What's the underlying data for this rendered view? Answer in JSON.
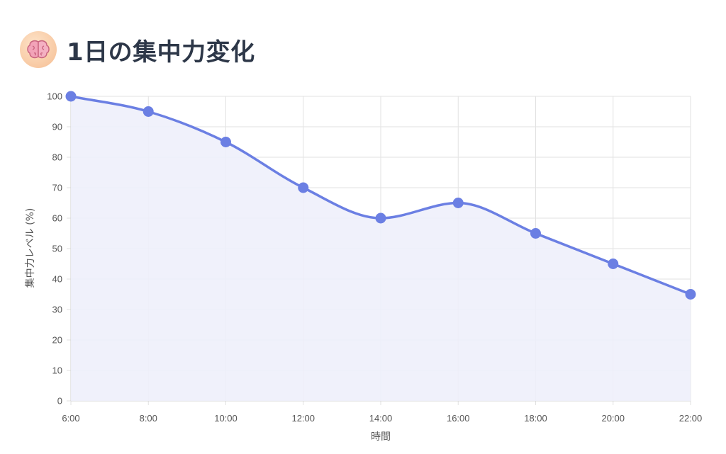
{
  "header": {
    "title": "1日の集中力変化",
    "icon": "brain-icon"
  },
  "colors": {
    "line": "#6b7fe3",
    "fill": "#eef0fb",
    "grid": "#e2e2e2",
    "title": "#2d3748"
  },
  "chart_data": {
    "type": "line",
    "title": "1日の集中力変化",
    "xlabel": "時間",
    "ylabel": "集中力レベル (%)",
    "categories": [
      "6:00",
      "8:00",
      "10:00",
      "12:00",
      "14:00",
      "16:00",
      "18:00",
      "20:00",
      "22:00"
    ],
    "values": [
      100,
      95,
      85,
      70,
      60,
      65,
      55,
      45,
      35
    ],
    "ylim": [
      0,
      100
    ],
    "yticks": [
      0,
      10,
      20,
      30,
      40,
      50,
      60,
      70,
      80,
      90,
      100
    ],
    "area_fill": true,
    "smooth": true,
    "grid": true,
    "legend": "none"
  }
}
